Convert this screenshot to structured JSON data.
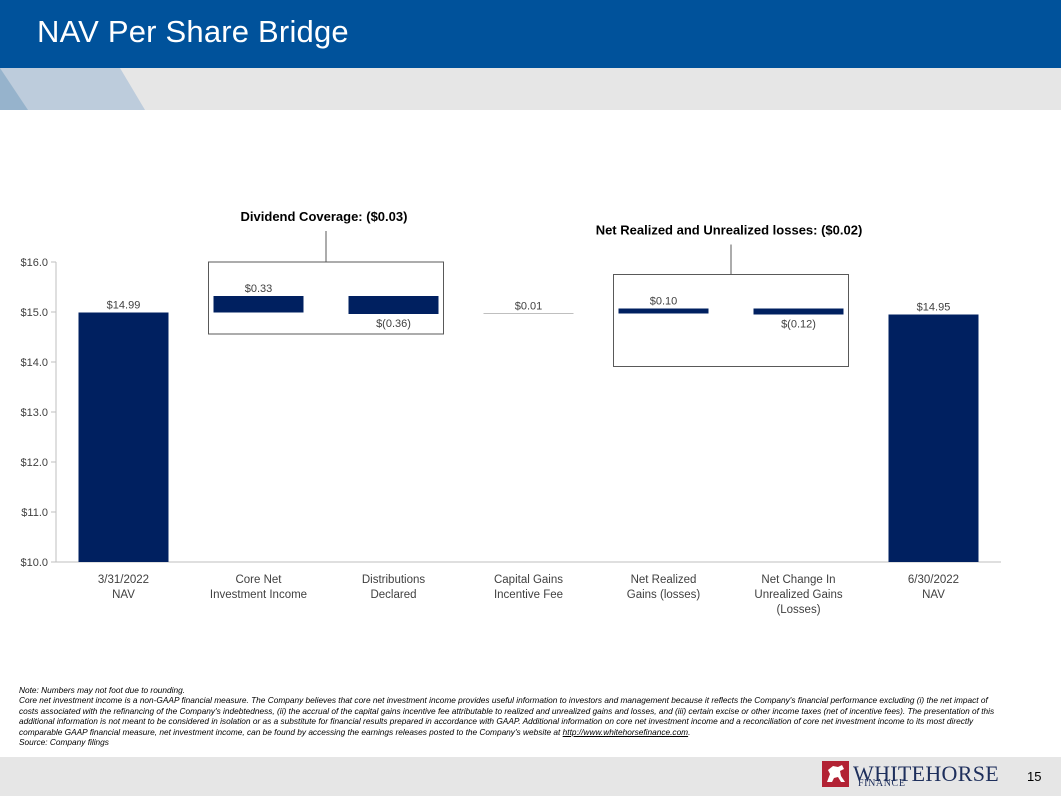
{
  "page": {
    "title": "NAV Per Share Bridge",
    "page_number": "15",
    "brand_color": "#00529b",
    "bar_color": "#002060"
  },
  "notes": {
    "line1": "Note: Numbers may not foot due to rounding.",
    "line2": "Core net investment income is a non-GAAP financial measure. The Company believes that core net investment income provides useful information to investors and management because it reflects the Company's financial performance excluding (i) the net impact of costs associated with the refinancing of the Company's indebtedness, (ii) the accrual of the capital gains incentive fee attributable to realized and unrealized gains and losses, and (iii) certain excise or other income taxes (net of incentive fees). The presentation of this additional information is not meant to be considered in isolation or as a substitute for financial results prepared in accordance with GAAP. Additional information on core net investment income and a reconciliation of core net investment income to its most directly comparable GAAP financial measure, net investment income, can be found by accessing the earnings releases posted to the Company's website at",
    "link": "http://www.whitehorsefinance.com",
    "line2_end": ".",
    "source": "Source: Company filings"
  },
  "logo": {
    "name": "WHITEHORSE",
    "sub": "FINANCE",
    "icon": "horse-icon"
  },
  "chart_data": {
    "type": "waterfall",
    "ylim": [
      10.0,
      16.0
    ],
    "y_ticks": [
      "$10.0",
      "$11.0",
      "$12.0",
      "$13.0",
      "$14.0",
      "$15.0",
      "$16.0"
    ],
    "y_tick_values": [
      10,
      11,
      12,
      13,
      14,
      15,
      16
    ],
    "categories": [
      [
        "3/31/2022",
        "NAV"
      ],
      [
        "Core Net",
        "Investment Income"
      ],
      [
        "Distributions",
        "Declared"
      ],
      [
        "Capital Gains",
        "Incentive Fee"
      ],
      [
        "Net Realized",
        "Gains (losses)"
      ],
      [
        "Net Change In",
        "Unrealized Gains",
        "(Losses)"
      ],
      [
        "6/30/2022",
        "NAV"
      ]
    ],
    "bars": [
      {
        "kind": "total",
        "value": 14.99,
        "label": "$14.99"
      },
      {
        "kind": "delta",
        "value": 0.33,
        "label": "$0.33"
      },
      {
        "kind": "delta",
        "value": -0.36,
        "label": "$(0.36)"
      },
      {
        "kind": "delta",
        "value": 0.01,
        "label": "$0.01"
      },
      {
        "kind": "delta",
        "value": 0.1,
        "label": "$0.10"
      },
      {
        "kind": "delta",
        "value": -0.12,
        "label": "$(0.12)"
      },
      {
        "kind": "total",
        "value": 14.95,
        "label": "$14.95"
      }
    ],
    "annotations": [
      {
        "text": "Dividend Coverage: ($0.03)",
        "spans": [
          1,
          2
        ]
      },
      {
        "text": "Net Realized and Unrealized losses: ($0.02)",
        "spans": [
          4,
          5
        ]
      }
    ]
  }
}
